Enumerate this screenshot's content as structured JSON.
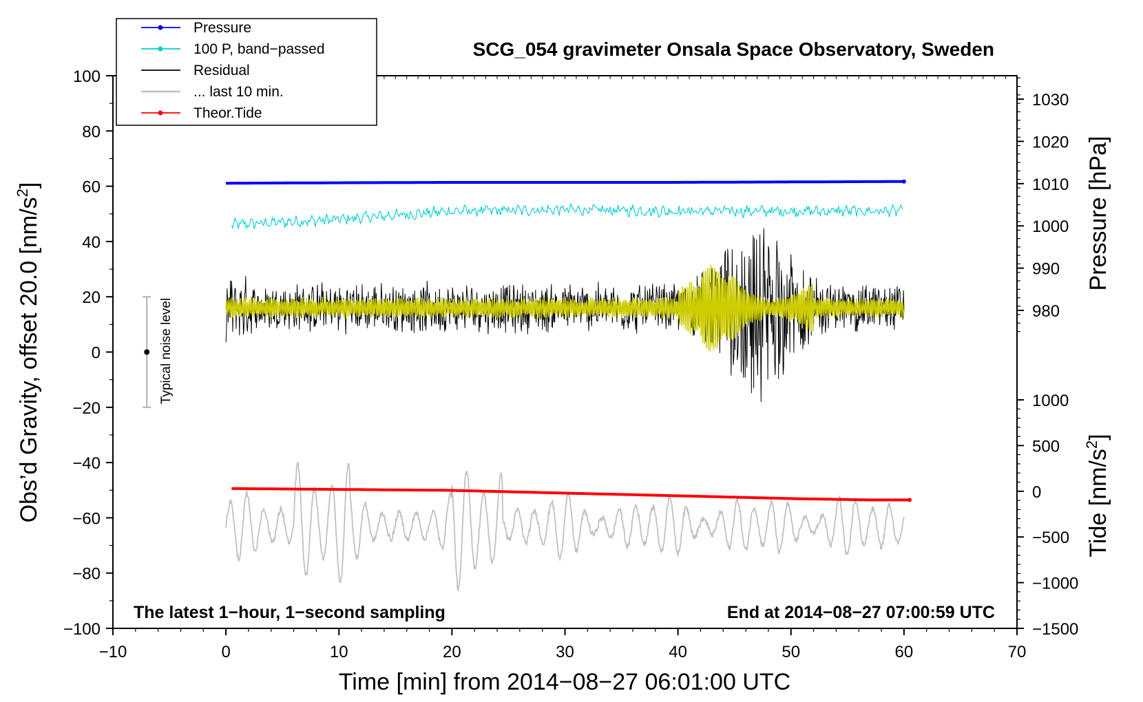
{
  "chart_data": {
    "type": "line",
    "title": "SCG_054 gravimeter Onsala Space Observatory, Sweden",
    "xlabel_main": "Time [min] from 2014−08−27 06:01:00 UTC",
    "ylabel_left_main": "Obs’d Gravity, offset 20.0 [nm/s",
    "ylabel_left_sup": "2",
    "ylabel_left_end": "]",
    "ylabel_right_top": "Pressure [hPa]",
    "ylabel_right_bottom_main": "Tide [nm/s",
    "ylabel_right_bottom_sup": "2",
    "ylabel_right_bottom_end": "]",
    "xlim": [
      -10,
      70
    ],
    "ylim": [
      -100,
      100
    ],
    "pressure_axis_range": [
      975,
      1035
    ],
    "tide_axis_range": [
      -1500,
      1000
    ],
    "x_ticks": [
      -10,
      0,
      10,
      20,
      30,
      40,
      50,
      60,
      70
    ],
    "x_tick_labels": [
      "−10",
      "0",
      "10",
      "20",
      "30",
      "40",
      "50",
      "60",
      "70"
    ],
    "y_ticks": [
      100,
      80,
      60,
      40,
      20,
      0,
      -20,
      -40,
      -60,
      -80,
      -100
    ],
    "y_tick_labels": [
      "100",
      "80",
      "60",
      "40",
      "20",
      "0",
      "−20",
      "−40",
      "−60",
      "−80",
      "−100"
    ],
    "pressure_ticks": [
      1030,
      1020,
      1010,
      1000,
      990,
      980
    ],
    "pressure_tick_labels": [
      "1030",
      "1020",
      "1010",
      "1000",
      "990",
      "980"
    ],
    "tide_ticks": [
      1000,
      500,
      0,
      -500,
      -1000,
      -1500
    ],
    "tide_tick_labels": [
      "1000",
      "500",
      "0",
      "−500",
      "−1000",
      "−1500"
    ],
    "legend": [
      {
        "label": "Pressure",
        "color": "#0000ff",
        "marker": true
      },
      {
        "label": "100 P, band−passed",
        "color": "#00cccc",
        "marker": true
      },
      {
        "label": "Residual",
        "color": "#000000",
        "marker": false
      },
      {
        "label": "... last 10 min.",
        "color": "#c0c0c0",
        "marker": false
      },
      {
        "label": "Theor.Tide",
        "color": "#ff0000",
        "marker": true
      }
    ],
    "annotation_left": "The latest 1−hour, 1−second sampling",
    "annotation_right": "End at 2014−08−27 07:00:59 UTC",
    "noise_label": "Typical noise level",
    "noise_bar": {
      "x": -7,
      "center": 0,
      "low": -20,
      "high": 20
    },
    "series": [
      {
        "name": "Pressure",
        "color": "#0000ff",
        "x": [
          0,
          10,
          20,
          30,
          40,
          50,
          60
        ],
        "values_hPa": [
          1010.1,
          1010.2,
          1010.3,
          1010.3,
          1010.3,
          1010.4,
          1010.5
        ]
      },
      {
        "name": "100 P, band-passed",
        "color": "#00cccc",
        "x": [
          0,
          10,
          20,
          30,
          40,
          50,
          60
        ],
        "values": [
          46,
          48,
          51,
          51.5,
          51,
          51,
          51
        ]
      },
      {
        "name": "Residual",
        "color": "#000000",
        "x_range": [
          0,
          60
        ],
        "baseline": 16,
        "typical_amplitude": 10,
        "burst_x_range": [
          41,
          53
        ],
        "burst_amplitude": 28
      },
      {
        "name": "Residual (yellow, smoothed)",
        "color": "#cccc00",
        "x_range": [
          0,
          60
        ],
        "baseline": 16,
        "typical_amplitude": 3,
        "burst_amplitude": 12
      },
      {
        "name": "Theor.Tide",
        "color": "#ff0000",
        "x": [
          0,
          10,
          20,
          30,
          40,
          50,
          57,
          60.5
        ],
        "values_nm_s2": [
          30,
          20,
          10,
          -20,
          -50,
          -80,
          -95,
          -95
        ]
      },
      {
        "name": "... last 10 min.",
        "color": "#c0c0c0",
        "x_range": [
          0,
          60
        ],
        "baseline": -63,
        "min": -89,
        "max": -34
      }
    ]
  }
}
